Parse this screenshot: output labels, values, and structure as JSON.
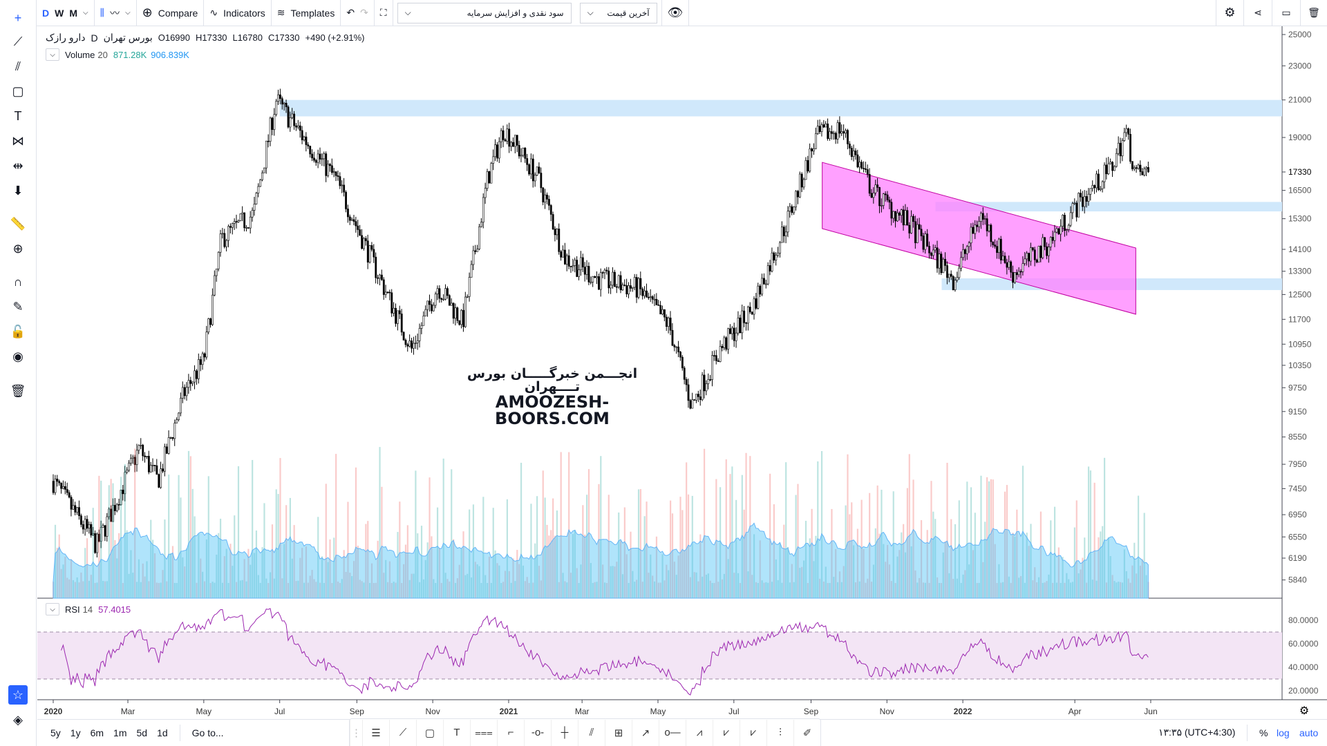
{
  "toolbar": {
    "intervals": [
      "D",
      "W",
      "M"
    ],
    "active_interval": "D",
    "compare": "Compare",
    "indicators": "Indicators",
    "templates": "Templates",
    "adjust_select": "سود نقدی و افزایش سرمایه",
    "price_select": "آخرین قیمت"
  },
  "legend": {
    "symbol": "دارو رازک",
    "exchange": "بورس تهران",
    "interval": "D",
    "open": "O16990",
    "high": "H17330",
    "low": "L16780",
    "close": "C17330",
    "change": "+490 (+2.91%)"
  },
  "volume_legend": {
    "name": "Volume",
    "period": "20",
    "value": "871.28K",
    "ma": "906.839K"
  },
  "rsi_legend": {
    "name": "RSI",
    "period": "14",
    "value": "57.4015"
  },
  "watermark": {
    "line1": "انجـــمن خبرگـــــان بورس تــــهران",
    "line2": "AMOOZESH-BOORS.COM"
  },
  "bottom": {
    "ranges": [
      "5y",
      "1y",
      "6m",
      "1m",
      "5d",
      "1d"
    ],
    "goto": "Go to...",
    "clock": "۱۳:۳۵ (UTC+4:30)",
    "percent": "%",
    "log": "log",
    "auto": "auto"
  },
  "colors": {
    "up": "#26a69a",
    "down": "#000000",
    "accent": "#2962ff",
    "zone": "#d0e8fb",
    "channel": "#ff80ff",
    "rsi": "#9c27b0",
    "volume_ma": "#8ecbf5"
  },
  "chart_data": {
    "type": "candlestick",
    "scale": "log",
    "price_ticks": [
      25000,
      23000,
      21000,
      19000,
      17330,
      16500,
      15300,
      14100,
      13300,
      12500,
      11700,
      10950,
      10350,
      9750,
      9150,
      8550,
      7950,
      7450,
      6950,
      6550,
      6190,
      5840
    ],
    "last_price": 17330,
    "time_ticks": [
      {
        "d": "2020-01-01",
        "l": "2020"
      },
      {
        "d": "2020-03-01",
        "l": "Mar"
      },
      {
        "d": "2020-05-01",
        "l": "May"
      },
      {
        "d": "2020-07-01",
        "l": "Jul"
      },
      {
        "d": "2020-09-01",
        "l": "Sep"
      },
      {
        "d": "2020-11-01",
        "l": "Nov"
      },
      {
        "d": "2021-01-01",
        "l": "2021"
      },
      {
        "d": "2021-03-01",
        "l": "Mar"
      },
      {
        "d": "2021-05-01",
        "l": "May"
      },
      {
        "d": "2021-07-01",
        "l": "Jul"
      },
      {
        "d": "2021-09-01",
        "l": "Sep"
      },
      {
        "d": "2021-11-01",
        "l": "Nov"
      },
      {
        "d": "2022-01-01",
        "l": "2022"
      },
      {
        "d": "2022-04-01",
        "l": "Apr"
      },
      {
        "d": "2022-06-01",
        "l": "Jun"
      }
    ],
    "price_path": [
      [
        "2020-01-01",
        7600
      ],
      [
        "2020-02-05",
        6400
      ],
      [
        "2020-03-10",
        8300
      ],
      [
        "2020-03-25",
        7600
      ],
      [
        "2020-04-15",
        9600
      ],
      [
        "2020-05-01",
        10500
      ],
      [
        "2020-05-15",
        14500
      ],
      [
        "2020-06-10",
        15500
      ],
      [
        "2020-06-28",
        21000
      ],
      [
        "2020-07-20",
        19000
      ],
      [
        "2020-08-15",
        17000
      ],
      [
        "2020-09-15",
        13500
      ],
      [
        "2020-10-15",
        10800
      ],
      [
        "2020-11-05",
        12800
      ],
      [
        "2020-11-25",
        11600
      ],
      [
        "2020-12-15",
        17000
      ],
      [
        "2020-12-28",
        19500
      ],
      [
        "2021-01-25",
        17000
      ],
      [
        "2021-02-15",
        13800
      ],
      [
        "2021-03-15",
        13000
      ],
      [
        "2021-04-15",
        12700
      ],
      [
        "2021-05-10",
        11500
      ],
      [
        "2021-05-28",
        9300
      ],
      [
        "2021-06-20",
        10800
      ],
      [
        "2021-07-15",
        12000
      ],
      [
        "2021-08-15",
        15500
      ],
      [
        "2021-09-05",
        19000
      ],
      [
        "2021-09-25",
        19500
      ],
      [
        "2021-10-20",
        16500
      ],
      [
        "2021-11-20",
        15000
      ],
      [
        "2021-12-25",
        13000
      ],
      [
        "2022-01-15",
        15500
      ],
      [
        "2022-02-10",
        13200
      ],
      [
        "2022-03-10",
        14300
      ],
      [
        "2022-04-05",
        16000
      ],
      [
        "2022-04-30",
        17500
      ],
      [
        "2022-05-12",
        19300
      ],
      [
        "2022-05-20",
        17200
      ],
      [
        "2022-05-31",
        17330
      ]
    ],
    "rsi_ticks": [
      80,
      60,
      40,
      20
    ],
    "rsi_bands": [
      70,
      30
    ],
    "zones": [
      {
        "from": "2020-07-01",
        "lo": 20100,
        "hi": 21000
      },
      {
        "from": "2021-12-10",
        "lo": 15600,
        "hi": 16000
      },
      {
        "from": "2021-12-15",
        "lo": 12650,
        "hi": 13050
      }
    ],
    "channel": {
      "start": "2021-09-10",
      "end": "2022-05-20",
      "upper": [
        17780,
        14150
      ],
      "lower": [
        14900,
        11860
      ]
    }
  }
}
